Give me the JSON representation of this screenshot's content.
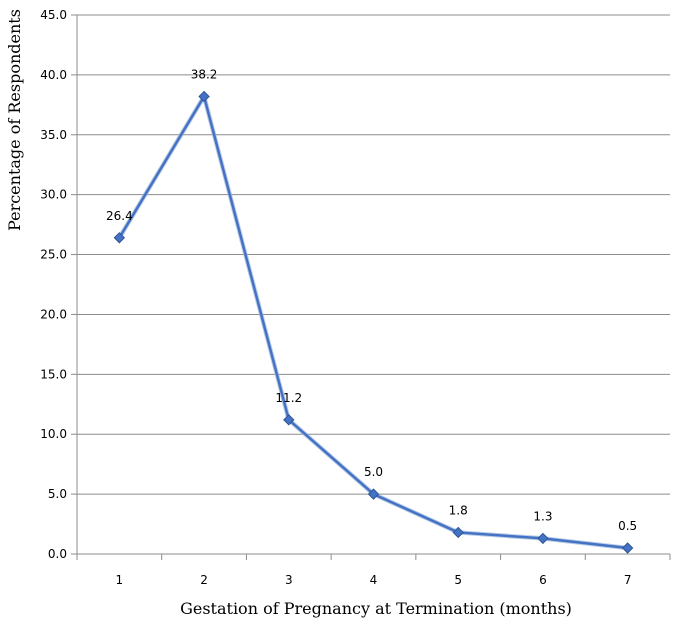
{
  "chart_data": {
    "type": "line",
    "title": "",
    "xlabel": "Gestation of Pregnancy at Termination (months)",
    "ylabel": "Percentage  of Respondents",
    "categories": [
      "1",
      "2",
      "3",
      "4",
      "5",
      "6",
      "7"
    ],
    "y_ticks": [
      "0.0",
      "5.0",
      "10.0",
      "15.0",
      "20.0",
      "25.0",
      "30.0",
      "35.0",
      "40.0",
      "45.0"
    ],
    "ylim": [
      0,
      45
    ],
    "grid": true,
    "legend": "none",
    "series": [
      {
        "values": [
          26.4,
          38.2,
          11.2,
          5.0,
          1.8,
          1.3,
          0.5
        ],
        "data_labels": [
          "26.4",
          "38.2",
          "11.2",
          "5.0",
          "1.8",
          "1.3",
          "0.5"
        ],
        "color": "#4472c4",
        "marker": "diamond"
      }
    ]
  }
}
